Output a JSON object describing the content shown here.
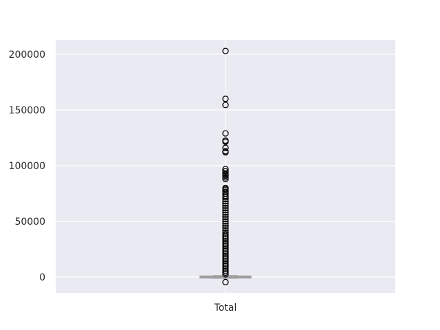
{
  "chart_data": {
    "type": "box",
    "title": "",
    "xlabel": "",
    "ylabel": "",
    "categories": [
      "Total"
    ],
    "ylim": [
      -14000,
      214000
    ],
    "yticks": [
      0,
      50000,
      100000,
      150000,
      200000
    ],
    "ytick_labels": [
      "0",
      "50000",
      "100000",
      "150000",
      "200000"
    ],
    "grid": true,
    "box": {
      "q1": -200,
      "median": 0,
      "q3": 300,
      "whisker_low": -1000,
      "whisker_high": 1200
    },
    "outliers": [
      203000,
      160000,
      154500,
      129000,
      122500,
      121500,
      116000,
      113000,
      112000,
      97000,
      95000,
      93500,
      92000,
      91000,
      89500,
      88000,
      80000,
      79000,
      78000,
      76500,
      75000,
      73000,
      72000,
      70000,
      68000,
      66000,
      64000,
      62000,
      60000,
      58000,
      56000,
      54000,
      52000,
      50000,
      48000,
      46000,
      44000,
      42000,
      40000,
      38500,
      37000,
      35500,
      34000,
      32500,
      31000,
      29500,
      28000,
      26500,
      25000,
      23500,
      22000,
      20500,
      19000,
      17500,
      16000,
      14500,
      13000,
      11500,
      10000,
      8500,
      7000,
      5500,
      4000,
      2500,
      -4500
    ],
    "colors": {
      "background": "#eaeaf2",
      "grid": "#ffffff",
      "box": "#9e9e9e",
      "outlier_edge": "#000000"
    }
  }
}
